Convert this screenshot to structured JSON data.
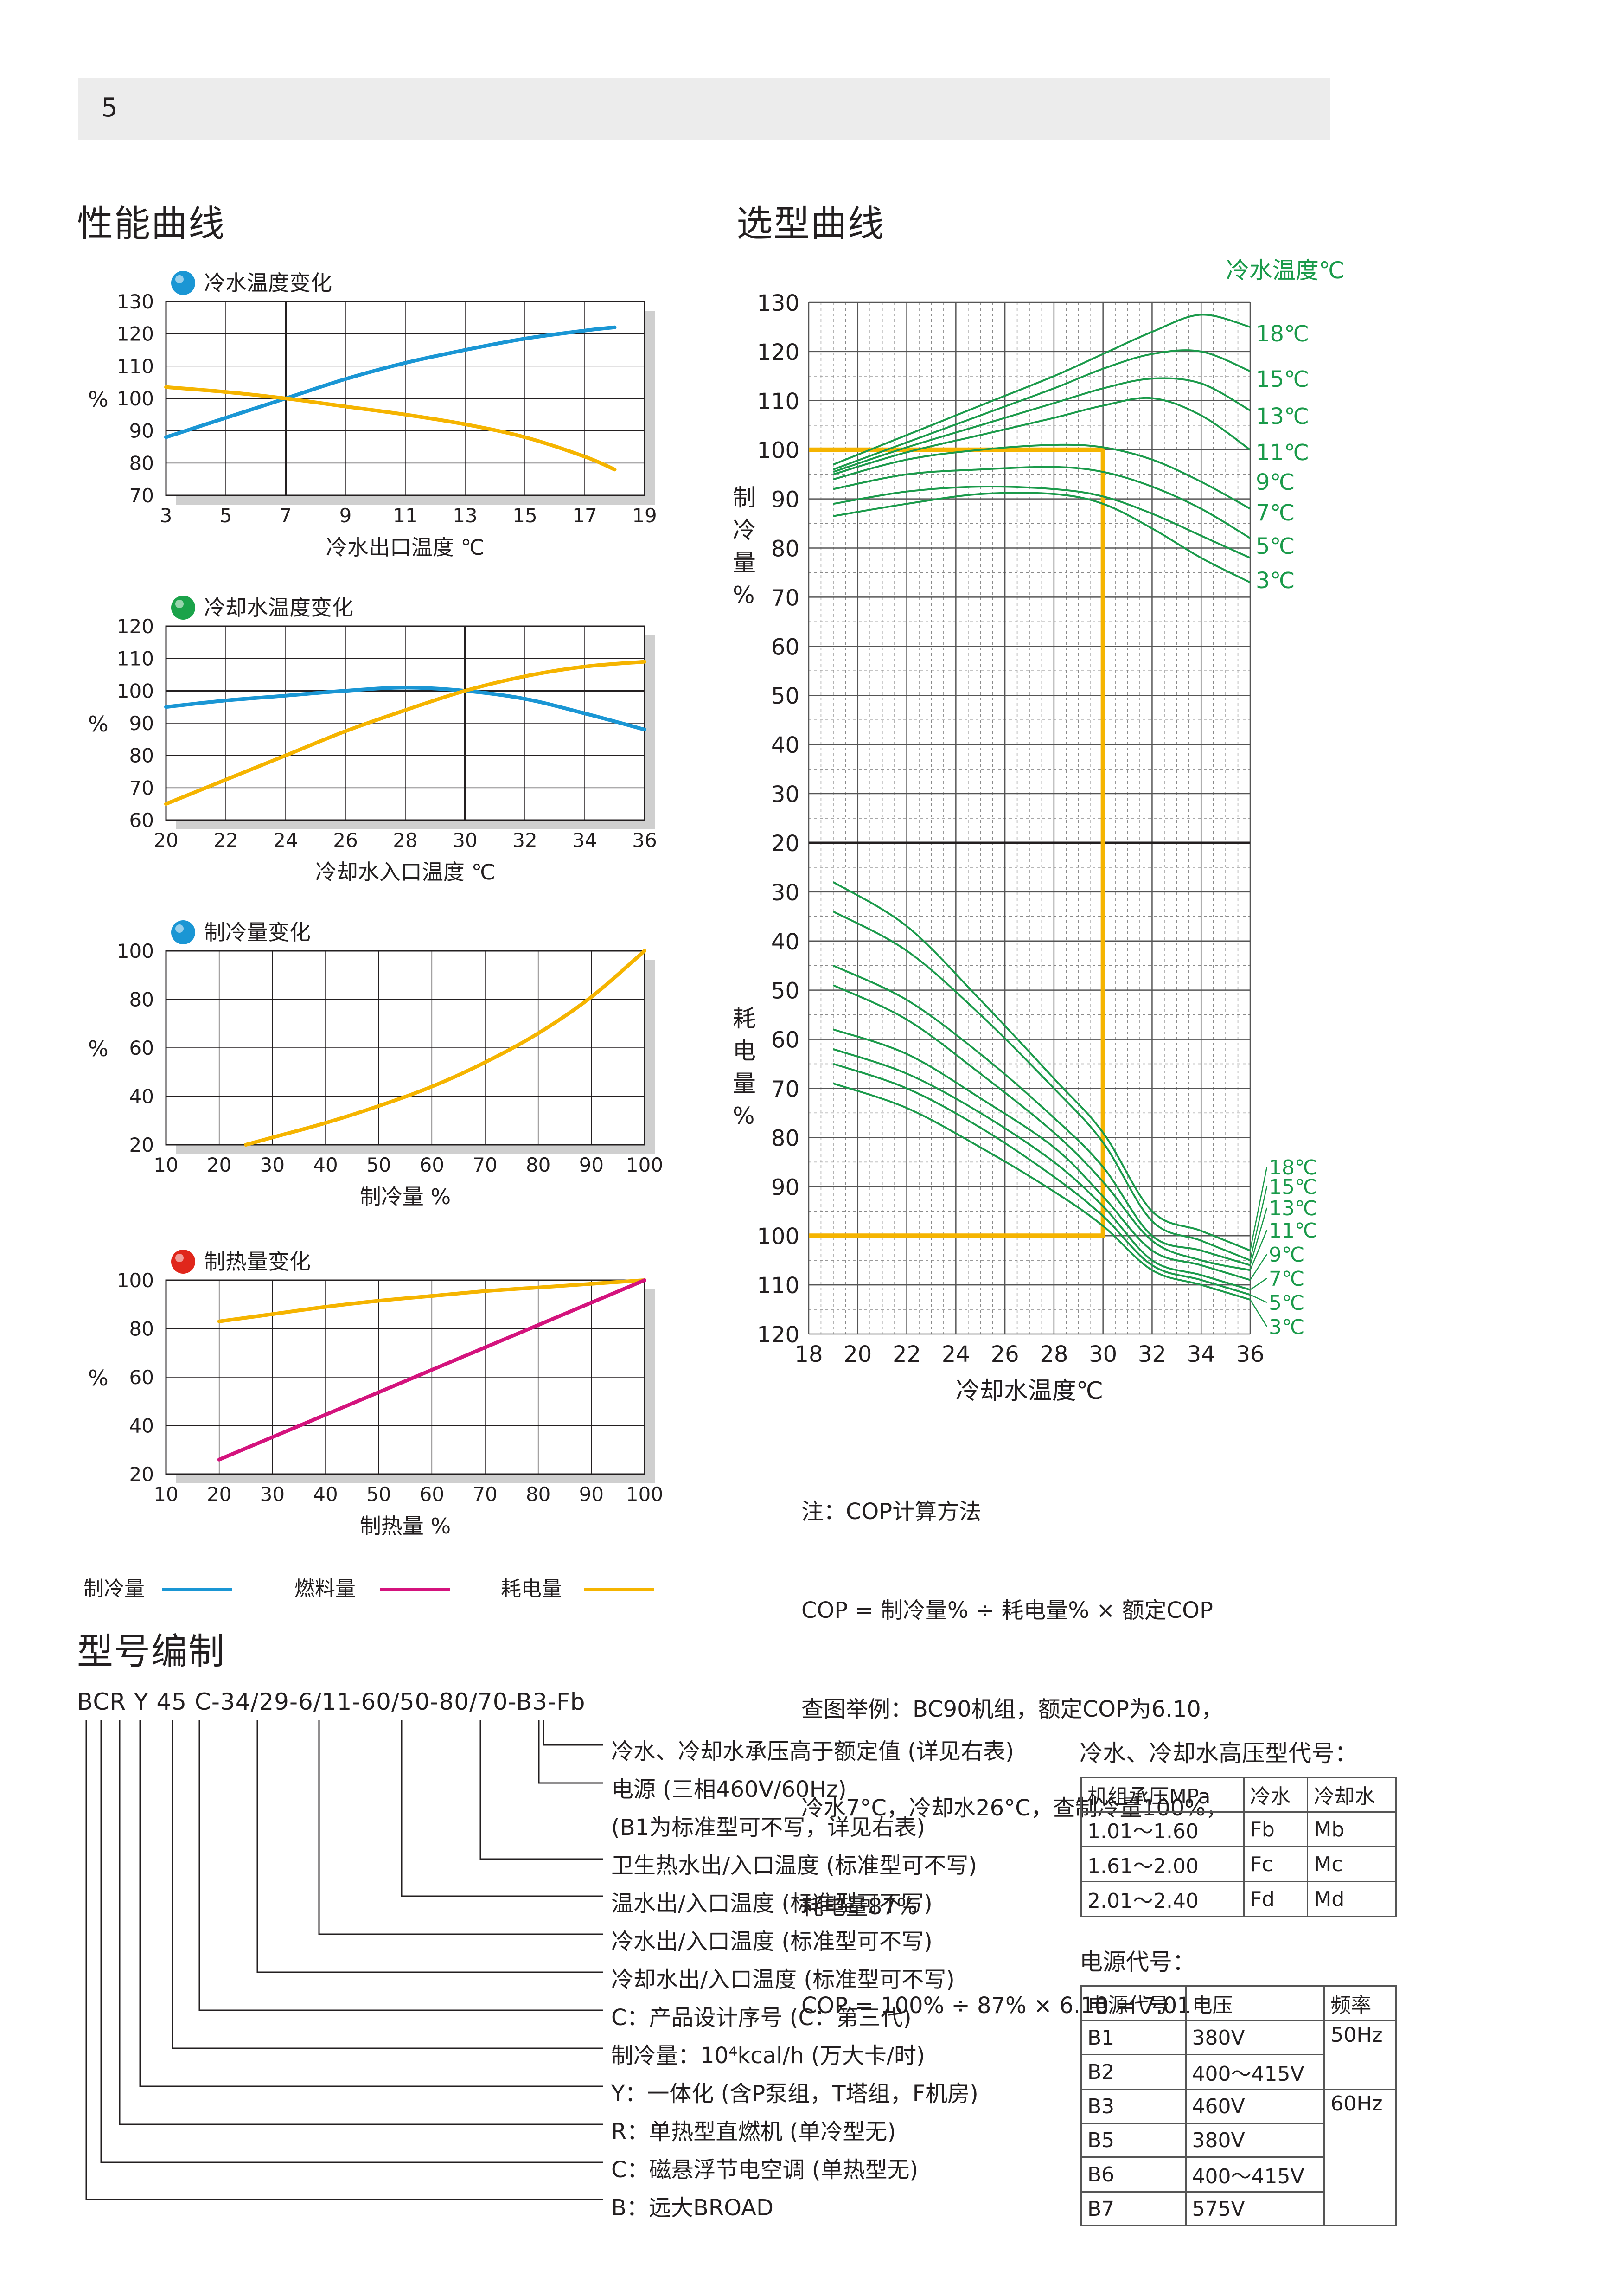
{
  "page_number": "5",
  "left_title": "性能曲线",
  "right_title": "选型曲线",
  "model_title": "型号编制",
  "perf_legend": [
    {
      "label": "制冷量",
      "color": "#1a96d4"
    },
    {
      "label": "燃料量",
      "color": "#d4137d"
    },
    {
      "label": "耗电量",
      "color": "#f5b400"
    }
  ],
  "selection_legend_title": "冷水温度℃",
  "note_lines": [
    "注：COP计算方法",
    "COP = 制冷量% ÷ 耗电量% × 额定COP",
    "查图举例：BC90机组，额定COP为6.10，",
    "冷水7°C，冷却水26°C，查制冷量100%，",
    "耗电量87%",
    "COP = 100% ÷ 87% × 6.10 = 7.01"
  ],
  "model_code": "BCR Y 45 C-34/29-6/11-60/50-80/70-B3-Fb",
  "model_descriptions": [
    "冷水、冷却水承压高于额定值 (详见右表)",
    "电源 (三相460V/60Hz)",
    "(B1为标准型可不写，详见右表)",
    "卫生热水出/入口温度 (标准型可不写)",
    "温水出/入口温度 (标准型可不写)",
    "冷水出/入口温度 (标准型可不写)",
    "冷却水出/入口温度 (标准型可不写)",
    "C：产品设计序号 (C：第三代)",
    "制冷量：10⁴kcal/h (万大卡/时)",
    "Y：一体化 (含P泵组，T塔组，F机房)",
    "R：单热型直燃机 (单冷型无)",
    "C：磁悬浮节电空调 (单热型无)",
    "B：远大BROAD"
  ],
  "pressure_table": {
    "title": "冷水、冷却水高压型代号：",
    "headers": [
      "机组承压MPa",
      "冷水",
      "冷却水"
    ],
    "rows": [
      [
        "1.01～1.60",
        "Fb",
        "Mb"
      ],
      [
        "1.61～2.00",
        "Fc",
        "Mc"
      ],
      [
        "2.01～2.40",
        "Fd",
        "Md"
      ]
    ]
  },
  "power_table": {
    "title": "电源代号：",
    "headers": [
      "电源代号",
      "电压",
      "频率"
    ],
    "rows": [
      [
        "B1",
        "380V",
        "50Hz"
      ],
      [
        "B2",
        "400～415V",
        ""
      ],
      [
        "B3",
        "460V",
        "60Hz"
      ],
      [
        "B5",
        "380V",
        ""
      ],
      [
        "B6",
        "400～415V",
        ""
      ],
      [
        "B7",
        "575V",
        ""
      ]
    ]
  },
  "chart_data": [
    {
      "type": "line",
      "title": "冷水温度变化",
      "title_dot_color": "#1a96d4",
      "xlabel": "冷水出口温度 ℃",
      "ylabel": "%",
      "xlim": [
        3,
        19
      ],
      "ylim": [
        70,
        130
      ],
      "xticks": [
        3,
        5,
        7,
        9,
        11,
        13,
        15,
        17,
        19
      ],
      "yticks": [
        70,
        80,
        90,
        100,
        110,
        120,
        130
      ],
      "marker_x": 7,
      "marker_y": 100,
      "series": [
        {
          "name": "制冷量",
          "color": "#1a96d4",
          "x": [
            3,
            5,
            7,
            9,
            11,
            13,
            15,
            17,
            18
          ],
          "y": [
            88,
            94,
            100,
            106,
            111,
            115,
            118.5,
            121,
            122
          ]
        },
        {
          "name": "耗电量",
          "color": "#f5b400",
          "x": [
            3,
            5,
            7,
            9,
            11,
            13,
            15,
            17,
            18
          ],
          "y": [
            103.5,
            102,
            100,
            97.5,
            95,
            92,
            88,
            82,
            78
          ]
        }
      ]
    },
    {
      "type": "line",
      "title": "冷却水温度变化",
      "title_dot_color": "#1ba34a",
      "xlabel": "冷却水入口温度 ℃",
      "ylabel": "%",
      "xlim": [
        20,
        36
      ],
      "ylim": [
        60,
        120
      ],
      "xticks": [
        20,
        22,
        24,
        26,
        28,
        30,
        32,
        34,
        36
      ],
      "yticks": [
        60,
        70,
        80,
        90,
        100,
        110,
        120
      ],
      "marker_x": 30,
      "marker_y": 100,
      "series": [
        {
          "name": "制冷量",
          "color": "#1a96d4",
          "x": [
            20,
            22,
            24,
            26,
            28,
            30,
            32,
            34,
            36
          ],
          "y": [
            95,
            97,
            98.5,
            100,
            101,
            100,
            97.5,
            93,
            88
          ]
        },
        {
          "name": "耗电量",
          "color": "#f5b400",
          "x": [
            20,
            22,
            24,
            26,
            28,
            30,
            32,
            34,
            36
          ],
          "y": [
            65,
            72.5,
            80,
            87.5,
            94,
            100,
            104.5,
            107.5,
            109
          ]
        }
      ]
    },
    {
      "type": "line",
      "title": "制冷量变化",
      "title_dot_color": "#1a96d4",
      "xlabel": "制冷量 %",
      "ylabel": "%",
      "xlim": [
        10,
        100
      ],
      "ylim": [
        20,
        100
      ],
      "xticks": [
        10,
        20,
        30,
        40,
        50,
        60,
        70,
        80,
        90,
        100
      ],
      "yticks": [
        20,
        40,
        60,
        80,
        100
      ],
      "series": [
        {
          "name": "耗电量",
          "color": "#f5b400",
          "x": [
            25,
            30,
            40,
            50,
            60,
            70,
            80,
            90,
            100
          ],
          "y": [
            20,
            23,
            29,
            36,
            44,
            54,
            66,
            81,
            100
          ]
        }
      ]
    },
    {
      "type": "line",
      "title": "制热量变化",
      "title_dot_color": "#e0261b",
      "xlabel": "制热量 %",
      "ylabel": "%",
      "xlim": [
        10,
        100
      ],
      "ylim": [
        20,
        100
      ],
      "xticks": [
        10,
        20,
        30,
        40,
        50,
        60,
        70,
        80,
        90,
        100
      ],
      "yticks": [
        20,
        40,
        60,
        80,
        100
      ],
      "series": [
        {
          "name": "耗电量",
          "color": "#f5b400",
          "x": [
            20,
            30,
            40,
            50,
            60,
            70,
            80,
            90,
            100
          ],
          "y": [
            83,
            86,
            89,
            91.5,
            93.5,
            95.5,
            97,
            98.5,
            100
          ]
        },
        {
          "name": "燃料量",
          "color": "#d4137d",
          "x": [
            20,
            100
          ],
          "y": [
            26,
            100
          ]
        }
      ]
    },
    {
      "type": "line",
      "title": "",
      "xlabel": "冷却水温度℃",
      "ylabel_top": "制冷量%",
      "ylabel_bottom": "耗电量%",
      "xlim": [
        18,
        36
      ],
      "xticks": [
        18,
        20,
        22,
        24,
        26,
        28,
        30,
        32,
        34,
        36
      ],
      "top_yticks": [
        130,
        120,
        110,
        100,
        90,
        80,
        70,
        60,
        50,
        40,
        30,
        20
      ],
      "bottom_yticks": [
        30,
        40,
        50,
        60,
        70,
        80,
        90,
        100,
        110,
        120
      ],
      "example": {
        "cooling_water": 30,
        "capacity": 100,
        "power": 100
      },
      "series_color": "#1a9a4a",
      "series": [
        {
          "name": "18℃",
          "x": [
            19,
            22,
            25,
            28,
            30,
            32,
            34,
            36
          ],
          "capacity": [
            97,
            103,
            109,
            115,
            119.5,
            124,
            127.5,
            125
          ],
          "power": [
            28,
            37,
            52,
            68,
            79,
            95,
            99,
            103
          ]
        },
        {
          "name": "15℃",
          "x": [
            19,
            22,
            25,
            28,
            30,
            32,
            34,
            36
          ],
          "capacity": [
            96,
            101.5,
            107,
            112.5,
            116.5,
            119.5,
            120,
            116
          ],
          "power": [
            34,
            42,
            55,
            70,
            81,
            97,
            101,
            105
          ]
        },
        {
          "name": "13℃",
          "x": [
            19,
            22,
            25,
            28,
            30,
            32,
            34,
            36
          ],
          "capacity": [
            95.5,
            100.5,
            105,
            109.5,
            112.5,
            114.5,
            113.5,
            108
          ],
          "power": [
            45,
            52,
            63,
            76,
            86,
            100,
            103,
            106
          ]
        },
        {
          "name": "11℃",
          "x": [
            19,
            22,
            25,
            28,
            30,
            32,
            34,
            36
          ],
          "capacity": [
            95,
            99.5,
            103,
            106.5,
            109,
            110.5,
            107,
            100
          ],
          "power": [
            49,
            56,
            67,
            79,
            89,
            101,
            105,
            107
          ]
        },
        {
          "name": "9℃",
          "x": [
            19,
            22,
            25,
            28,
            30,
            32,
            34,
            36
          ],
          "capacity": [
            94,
            98,
            100,
            101,
            100.5,
            98,
            93.5,
            88
          ],
          "power": [
            58,
            63,
            72,
            82,
            92,
            103,
            106,
            109
          ]
        },
        {
          "name": "7℃",
          "x": [
            19,
            22,
            25,
            28,
            30,
            32,
            34,
            36
          ],
          "capacity": [
            92,
            95,
            96,
            96.5,
            95.5,
            92.5,
            88,
            82
          ],
          "power": [
            62,
            67,
            75,
            85,
            94,
            105,
            108,
            111
          ]
        },
        {
          "name": "5℃",
          "x": [
            19,
            22,
            25,
            28,
            30,
            32,
            34,
            36
          ],
          "capacity": [
            89,
            91.5,
            92.5,
            92,
            90.5,
            87,
            82.5,
            78
          ],
          "power": [
            65,
            70,
            78,
            88,
            96,
            106,
            109,
            112
          ]
        },
        {
          "name": "3℃",
          "x": [
            19,
            22,
            25,
            28,
            30,
            32,
            34,
            36
          ],
          "capacity": [
            86.5,
            89,
            91,
            91,
            89,
            84,
            78,
            73
          ],
          "power": [
            69,
            74,
            82,
            91,
            98,
            107,
            110,
            113
          ]
        }
      ]
    }
  ]
}
